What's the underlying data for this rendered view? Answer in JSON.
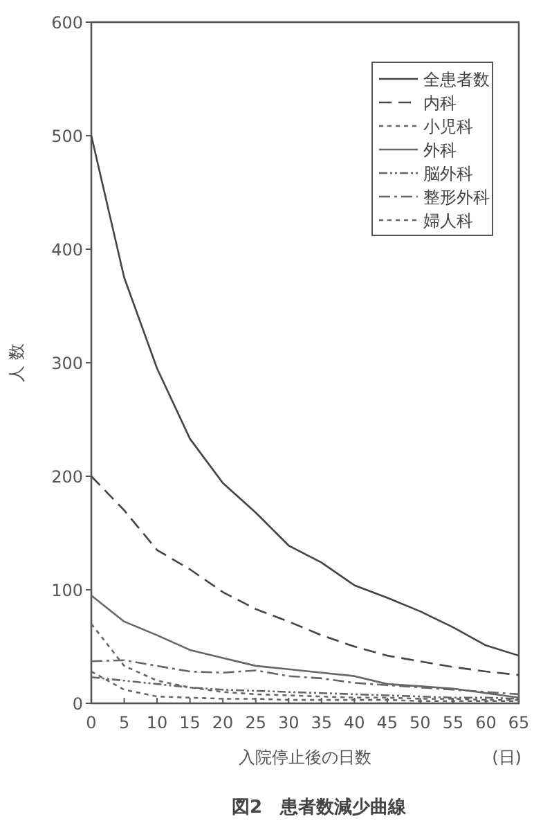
{
  "chart_data": {
    "type": "line",
    "title": "図2　患者数減少曲線",
    "xlabel": "入院停止後の日数",
    "ylabel": "人 数",
    "annotations": [
      "(日)"
    ],
    "x": [
      0,
      5,
      10,
      15,
      20,
      25,
      30,
      35,
      40,
      45,
      50,
      55,
      60,
      65
    ],
    "xlim": [
      0,
      65
    ],
    "xticks": [
      0,
      5,
      10,
      15,
      20,
      25,
      30,
      35,
      40,
      45,
      50,
      55,
      60,
      65
    ],
    "ylim": [
      0,
      600
    ],
    "yticks": [
      0,
      100,
      200,
      300,
      400,
      500,
      600
    ],
    "grid": false,
    "legend": "top right",
    "series": [
      {
        "name": "全患者数",
        "color": "#444444",
        "line_style": "solid",
        "values": [
          500,
          375,
          295,
          233,
          194,
          168,
          139,
          124,
          104,
          93,
          81,
          67,
          51,
          42
        ]
      },
      {
        "name": "内科",
        "color": "#444444",
        "line_style": "dashed",
        "values": [
          200,
          170,
          135,
          118,
          98,
          83,
          72,
          60,
          50,
          42,
          37,
          32,
          28,
          25
        ]
      },
      {
        "name": "小児科",
        "color": "#666666",
        "line_style": "dotted",
        "values": [
          70,
          33,
          20,
          14,
          10,
          8,
          7,
          6,
          5,
          5,
          4,
          4,
          3,
          3
        ]
      },
      {
        "name": "外科",
        "color": "#666666",
        "line_style": "solid",
        "values": [
          95,
          72,
          60,
          47,
          40,
          33,
          30,
          27,
          24,
          17,
          15,
          13,
          9,
          5
        ]
      },
      {
        "name": "脳外科",
        "color": "#666666",
        "line_style": "dashdotdot",
        "values": [
          23,
          20,
          17,
          14,
          12,
          11,
          10,
          9,
          8,
          7,
          6,
          5,
          5,
          4
        ]
      },
      {
        "name": "整形外科",
        "color": "#666666",
        "line_style": "dashdot",
        "values": [
          37,
          38,
          33,
          28,
          27,
          29,
          24,
          22,
          18,
          16,
          14,
          12,
          10,
          8
        ]
      },
      {
        "name": "婦人科",
        "color": "#666666",
        "line_style": "dotted",
        "values": [
          28,
          12,
          6,
          5,
          4,
          4,
          3,
          3,
          3,
          3,
          2,
          2,
          2,
          2
        ]
      }
    ]
  }
}
